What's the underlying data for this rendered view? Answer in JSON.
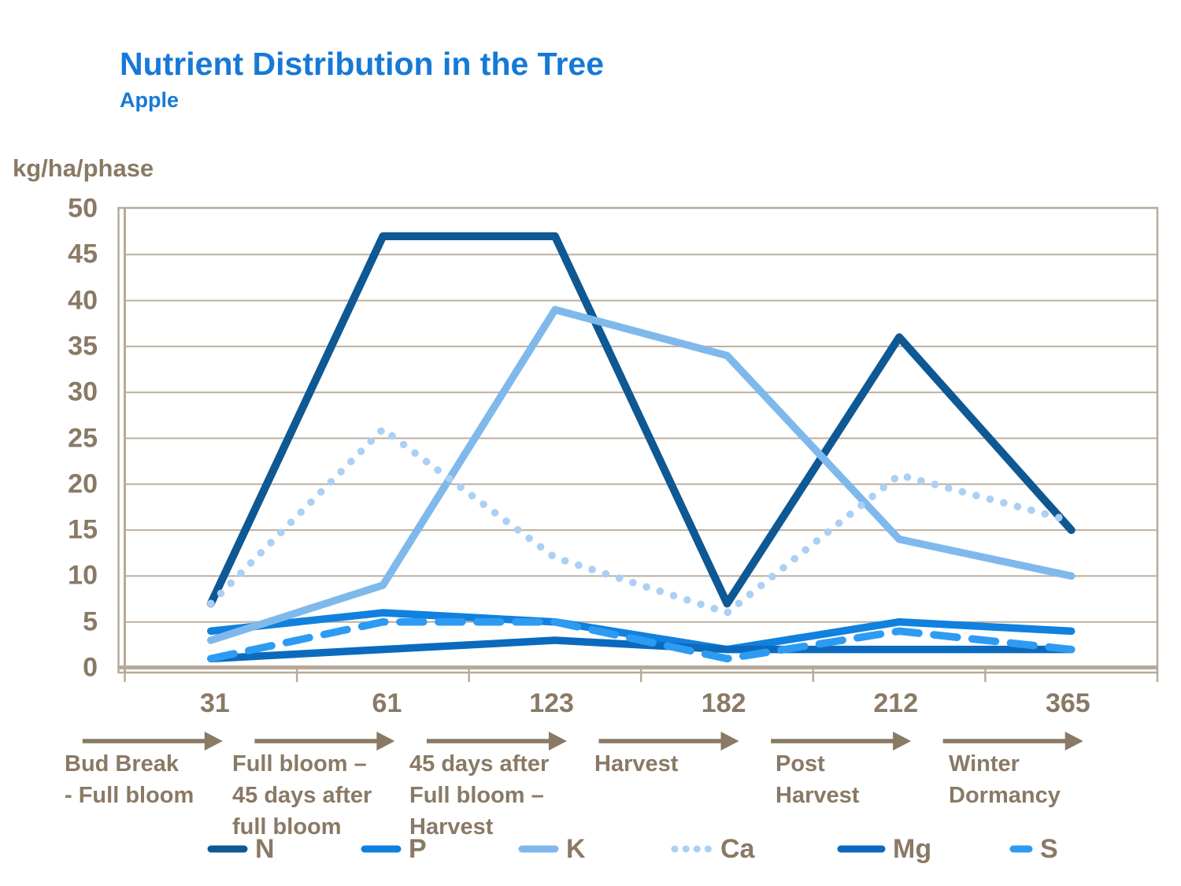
{
  "header": {
    "title": "Nutrient Distribution in the Tree",
    "subtitle": "Apple"
  },
  "chart_data": {
    "type": "line",
    "title": "Nutrient Distribution in the Tree",
    "subtitle": "Apple",
    "ylabel": "kg/ha/phase",
    "ylim": [
      0,
      50
    ],
    "ytick_step": 5,
    "yticks": [
      0,
      5,
      10,
      15,
      20,
      25,
      30,
      35,
      40,
      45,
      50
    ],
    "grid": "horizontal",
    "legend_position": "bottom",
    "x_categories": [
      31,
      61,
      123,
      182,
      212,
      365
    ],
    "phases": [
      {
        "day": "31",
        "lines": [
          "Bud Break",
          "- Full bloom"
        ]
      },
      {
        "day": "61",
        "lines": [
          "Full bloom –",
          "45 days after",
          "full bloom"
        ]
      },
      {
        "day": "123",
        "lines": [
          "45 days after",
          "Full bloom –",
          "Harvest"
        ]
      },
      {
        "day": "182",
        "lines": [
          "Harvest"
        ]
      },
      {
        "day": "212",
        "lines": [
          "Post",
          "Harvest"
        ]
      },
      {
        "day": "365",
        "lines": [
          "Winter",
          "Dormancy"
        ]
      }
    ],
    "series": [
      {
        "name": "N",
        "color": "#0E5894",
        "style": "solid",
        "values": [
          7,
          47,
          47,
          7,
          36,
          15
        ]
      },
      {
        "name": "P",
        "color": "#1081DE",
        "style": "solid",
        "values": [
          4,
          6,
          5,
          2,
          5,
          4
        ]
      },
      {
        "name": "K",
        "color": "#7FB9EC",
        "style": "solid",
        "values": [
          3,
          9,
          39,
          34,
          14,
          10
        ]
      },
      {
        "name": "Ca",
        "color": "#ABD0F4",
        "style": "dotted",
        "values": [
          7,
          26,
          12,
          6,
          21,
          16
        ]
      },
      {
        "name": "Mg",
        "color": "#0B6ABD",
        "style": "solid",
        "values": [
          1,
          2,
          3,
          2,
          2,
          2
        ]
      },
      {
        "name": "S",
        "color": "#2E9BF2",
        "style": "dashed",
        "values": [
          1,
          5,
          5,
          1,
          4,
          2
        ]
      }
    ],
    "axis_color": "#B7AA99",
    "gridline_color": "#BCAF9F",
    "text_color": "#8A7965",
    "title_color": "#1679D7"
  }
}
